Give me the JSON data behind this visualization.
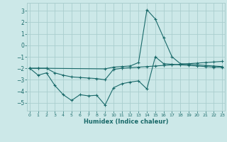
{
  "xlabel": "Humidex (Indice chaleur)",
  "bg_color": "#cce8e8",
  "grid_color": "#aacece",
  "line_color": "#1a6a6a",
  "xlim": [
    -0.3,
    23.3
  ],
  "ylim": [
    -5.7,
    3.7
  ],
  "yticks": [
    -5,
    -4,
    -3,
    -2,
    -1,
    0,
    1,
    2,
    3
  ],
  "xticks": [
    0,
    1,
    2,
    3,
    4,
    5,
    6,
    7,
    8,
    9,
    10,
    11,
    12,
    13,
    14,
    15,
    16,
    17,
    18,
    19,
    20,
    21,
    22,
    23
  ],
  "line1_x": [
    0,
    1,
    2,
    3,
    4,
    5,
    6,
    7,
    8,
    9,
    10,
    11,
    12,
    13,
    14,
    15,
    16,
    17,
    18,
    19,
    20,
    21,
    22,
    23
  ],
  "line1_y": [
    -2.0,
    -2.6,
    -2.4,
    -3.5,
    -4.3,
    -4.8,
    -4.3,
    -4.4,
    -4.35,
    -5.2,
    -3.7,
    -3.35,
    -3.2,
    -3.1,
    -3.8,
    -1.0,
    -1.6,
    -1.65,
    -1.7,
    -1.75,
    -1.8,
    -1.85,
    -1.9,
    -1.9
  ],
  "line2_x": [
    0,
    1,
    2,
    9,
    10,
    11,
    12,
    13,
    14,
    15,
    16,
    17,
    18,
    19,
    20,
    21,
    22,
    23
  ],
  "line2_y": [
    -2.0,
    -2.0,
    -2.0,
    -2.05,
    -1.9,
    -1.85,
    -1.8,
    -1.5,
    3.1,
    2.3,
    0.65,
    -1.0,
    -1.6,
    -1.65,
    -1.7,
    -1.75,
    -1.8,
    -1.85
  ],
  "line3_x": [
    0,
    1,
    2,
    3,
    4,
    5,
    6,
    7,
    8,
    9,
    10,
    11,
    12,
    13,
    14,
    15,
    16,
    17,
    18,
    19,
    20,
    21,
    22,
    23
  ],
  "line3_y": [
    -2.0,
    -2.0,
    -2.0,
    -2.4,
    -2.6,
    -2.75,
    -2.8,
    -2.85,
    -2.9,
    -3.0,
    -2.1,
    -2.0,
    -1.95,
    -1.9,
    -1.85,
    -1.8,
    -1.75,
    -1.7,
    -1.65,
    -1.6,
    -1.55,
    -1.5,
    -1.45,
    -1.4
  ]
}
